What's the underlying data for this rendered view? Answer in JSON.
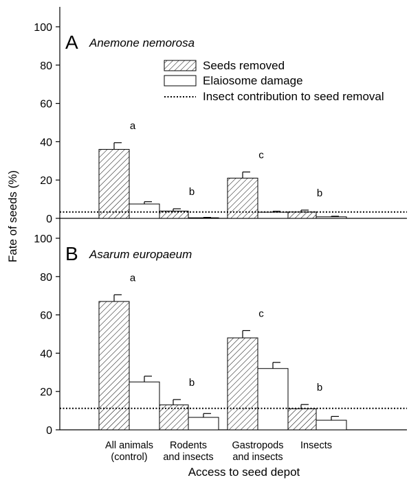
{
  "chart_data": {
    "type": "bar",
    "ylabel": "Fate of seeds (%)",
    "xlabel": "Access to seed depot",
    "ylim": [
      0,
      110
    ],
    "yticks": [
      0,
      20,
      40,
      60,
      80,
      100
    ],
    "categories": [
      [
        "All animals",
        "(control)"
      ],
      [
        "Rodents",
        "and insects"
      ],
      [
        "Gastropods",
        "and insects"
      ],
      [
        "Insects"
      ]
    ],
    "legend": {
      "placement": "top-right of panel A",
      "entries": [
        {
          "label": "Seeds removed",
          "style": "hatched-bar"
        },
        {
          "label": "Elaiosome damage",
          "style": "open-bar"
        },
        {
          "label": "Insect contribution to seed removal",
          "style": "dotted-line"
        }
      ]
    },
    "panels": [
      {
        "letter": "A",
        "species": "Anemone nemorosa",
        "series": [
          {
            "name": "Seeds removed",
            "values": [
              36,
              3.8,
              21,
              3.3
            ],
            "errors": [
              3.5,
              1.2,
              3.2,
              1.0
            ]
          },
          {
            "name": "Elaiosome damage",
            "values": [
              7.5,
              0.3,
              3.2,
              0.8
            ],
            "errors": [
              1.2,
              0.2,
              0.5,
              0.3
            ]
          }
        ],
        "insect_contribution": 3.3,
        "significance": [
          "a",
          "b",
          "c",
          "b"
        ]
      },
      {
        "letter": "B",
        "species": "Asarum europaeum",
        "series": [
          {
            "name": "Seeds removed",
            "values": [
              67,
              13,
              48,
              11
            ],
            "errors": [
              3.5,
              2.8,
              3.8,
              2.2
            ]
          },
          {
            "name": "Elaiosome damage",
            "values": [
              25,
              6.5,
              32,
              5
            ],
            "errors": [
              3.0,
              2.0,
              3.2,
              2.0
            ]
          }
        ],
        "insect_contribution": 11.2,
        "significance": [
          "a",
          "b",
          "c",
          "b"
        ]
      }
    ]
  }
}
